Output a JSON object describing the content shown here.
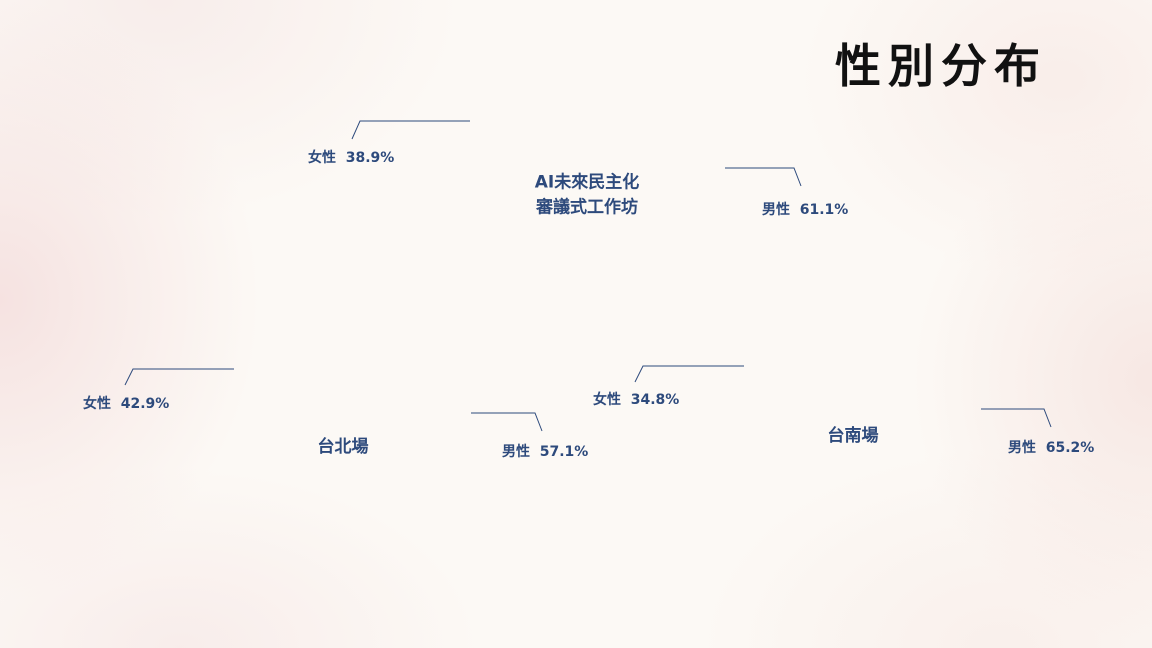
{
  "page": {
    "title": "性別分布",
    "colors": {
      "background": "#fcf9f5",
      "label": "#2d4a7c",
      "leader_line": "#2d4a7c",
      "title": "#111111"
    }
  },
  "chart_data": [
    {
      "type": "pie",
      "title": "AI未來民主化 審議式工作坊",
      "center_label_lines": [
        "AI未來民主化",
        "審議式工作坊"
      ],
      "categories": [
        "女性",
        "男性"
      ],
      "values": [
        38.9,
        61.1
      ],
      "unit": "%",
      "labels": [
        "女性  38.9%",
        "男性  61.1%"
      ]
    },
    {
      "type": "pie",
      "title": "台北場",
      "center_label_lines": [
        "台北場"
      ],
      "categories": [
        "女性",
        "男性"
      ],
      "values": [
        42.9,
        57.1
      ],
      "unit": "%",
      "labels": [
        "女性  42.9%",
        "男性  57.1%"
      ]
    },
    {
      "type": "pie",
      "title": "台南場",
      "center_label_lines": [
        "台南場"
      ],
      "categories": [
        "女性",
        "男性"
      ],
      "values": [
        34.8,
        65.2
      ],
      "unit": "%",
      "labels": [
        "女性  34.8%",
        "男性  65.2%"
      ]
    }
  ]
}
